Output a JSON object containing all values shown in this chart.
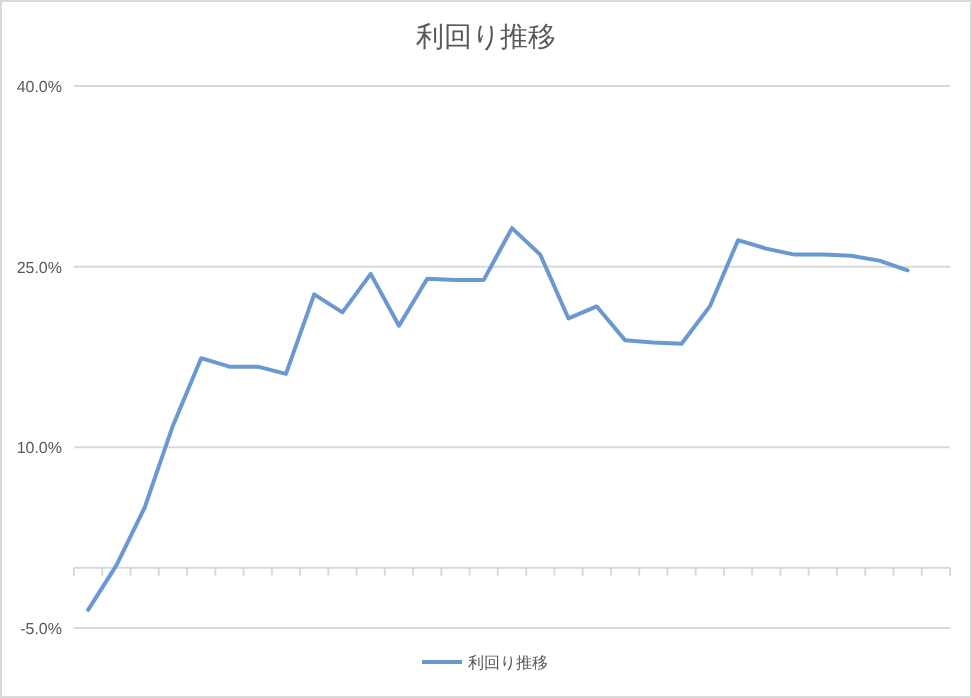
{
  "chart_data": {
    "type": "line",
    "title": "利回り推移",
    "categories": [
      null,
      null,
      null,
      null,
      null,
      null,
      null,
      null,
      null,
      null,
      null,
      null,
      null,
      null,
      null,
      null,
      null,
      null,
      null,
      null,
      null,
      null,
      null,
      null,
      null,
      null,
      null,
      null,
      null,
      null,
      null
    ],
    "series": [
      {
        "name": "利回り推移",
        "color": "#6a98d0",
        "values": [
          -3.5,
          0.2,
          5.0,
          11.8,
          17.4,
          16.7,
          16.7,
          16.1,
          22.7,
          21.2,
          24.4,
          20.1,
          24.0,
          23.9,
          23.9,
          28.2,
          26.0,
          20.7,
          21.7,
          18.9,
          18.7,
          18.6,
          21.7,
          27.2,
          26.5,
          26.0,
          26.0,
          25.9,
          25.5,
          24.7,
          null
        ]
      }
    ],
    "ylim": [
      -5,
      40
    ],
    "yticks": [
      {
        "value": -5,
        "label": "-5.0%"
      },
      {
        "value": 10,
        "label": "10.0%"
      },
      {
        "value": 25,
        "label": "25.0%"
      },
      {
        "value": 40,
        "label": "40.0%"
      }
    ],
    "grid": "y",
    "legend": "bottom",
    "marker": "none",
    "line_style": "solid"
  }
}
